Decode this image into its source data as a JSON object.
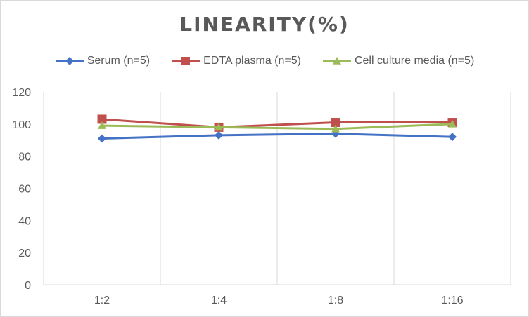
{
  "chart_data": {
    "type": "line",
    "title": "LINEARITY(%)",
    "xlabel": "",
    "ylabel": "",
    "categories": [
      "1:2",
      "1:4",
      "1:8",
      "1:16"
    ],
    "ylim": [
      0,
      120
    ],
    "yticks": [
      0,
      20,
      40,
      60,
      80,
      100,
      120
    ],
    "grid": "vertical",
    "legend_position": "top",
    "series": [
      {
        "name": "Serum (n=5)",
        "values": [
          91,
          93,
          94,
          92
        ],
        "color": "#4472c4",
        "marker": "diamond"
      },
      {
        "name": "EDTA plasma (n=5)",
        "values": [
          103,
          98,
          101,
          101
        ],
        "color": "#c0504d",
        "marker": "square"
      },
      {
        "name": "Cell culture media (n=5)",
        "values": [
          99,
          98,
          97,
          100
        ],
        "color": "#9bbb59",
        "marker": "triangle"
      }
    ]
  }
}
